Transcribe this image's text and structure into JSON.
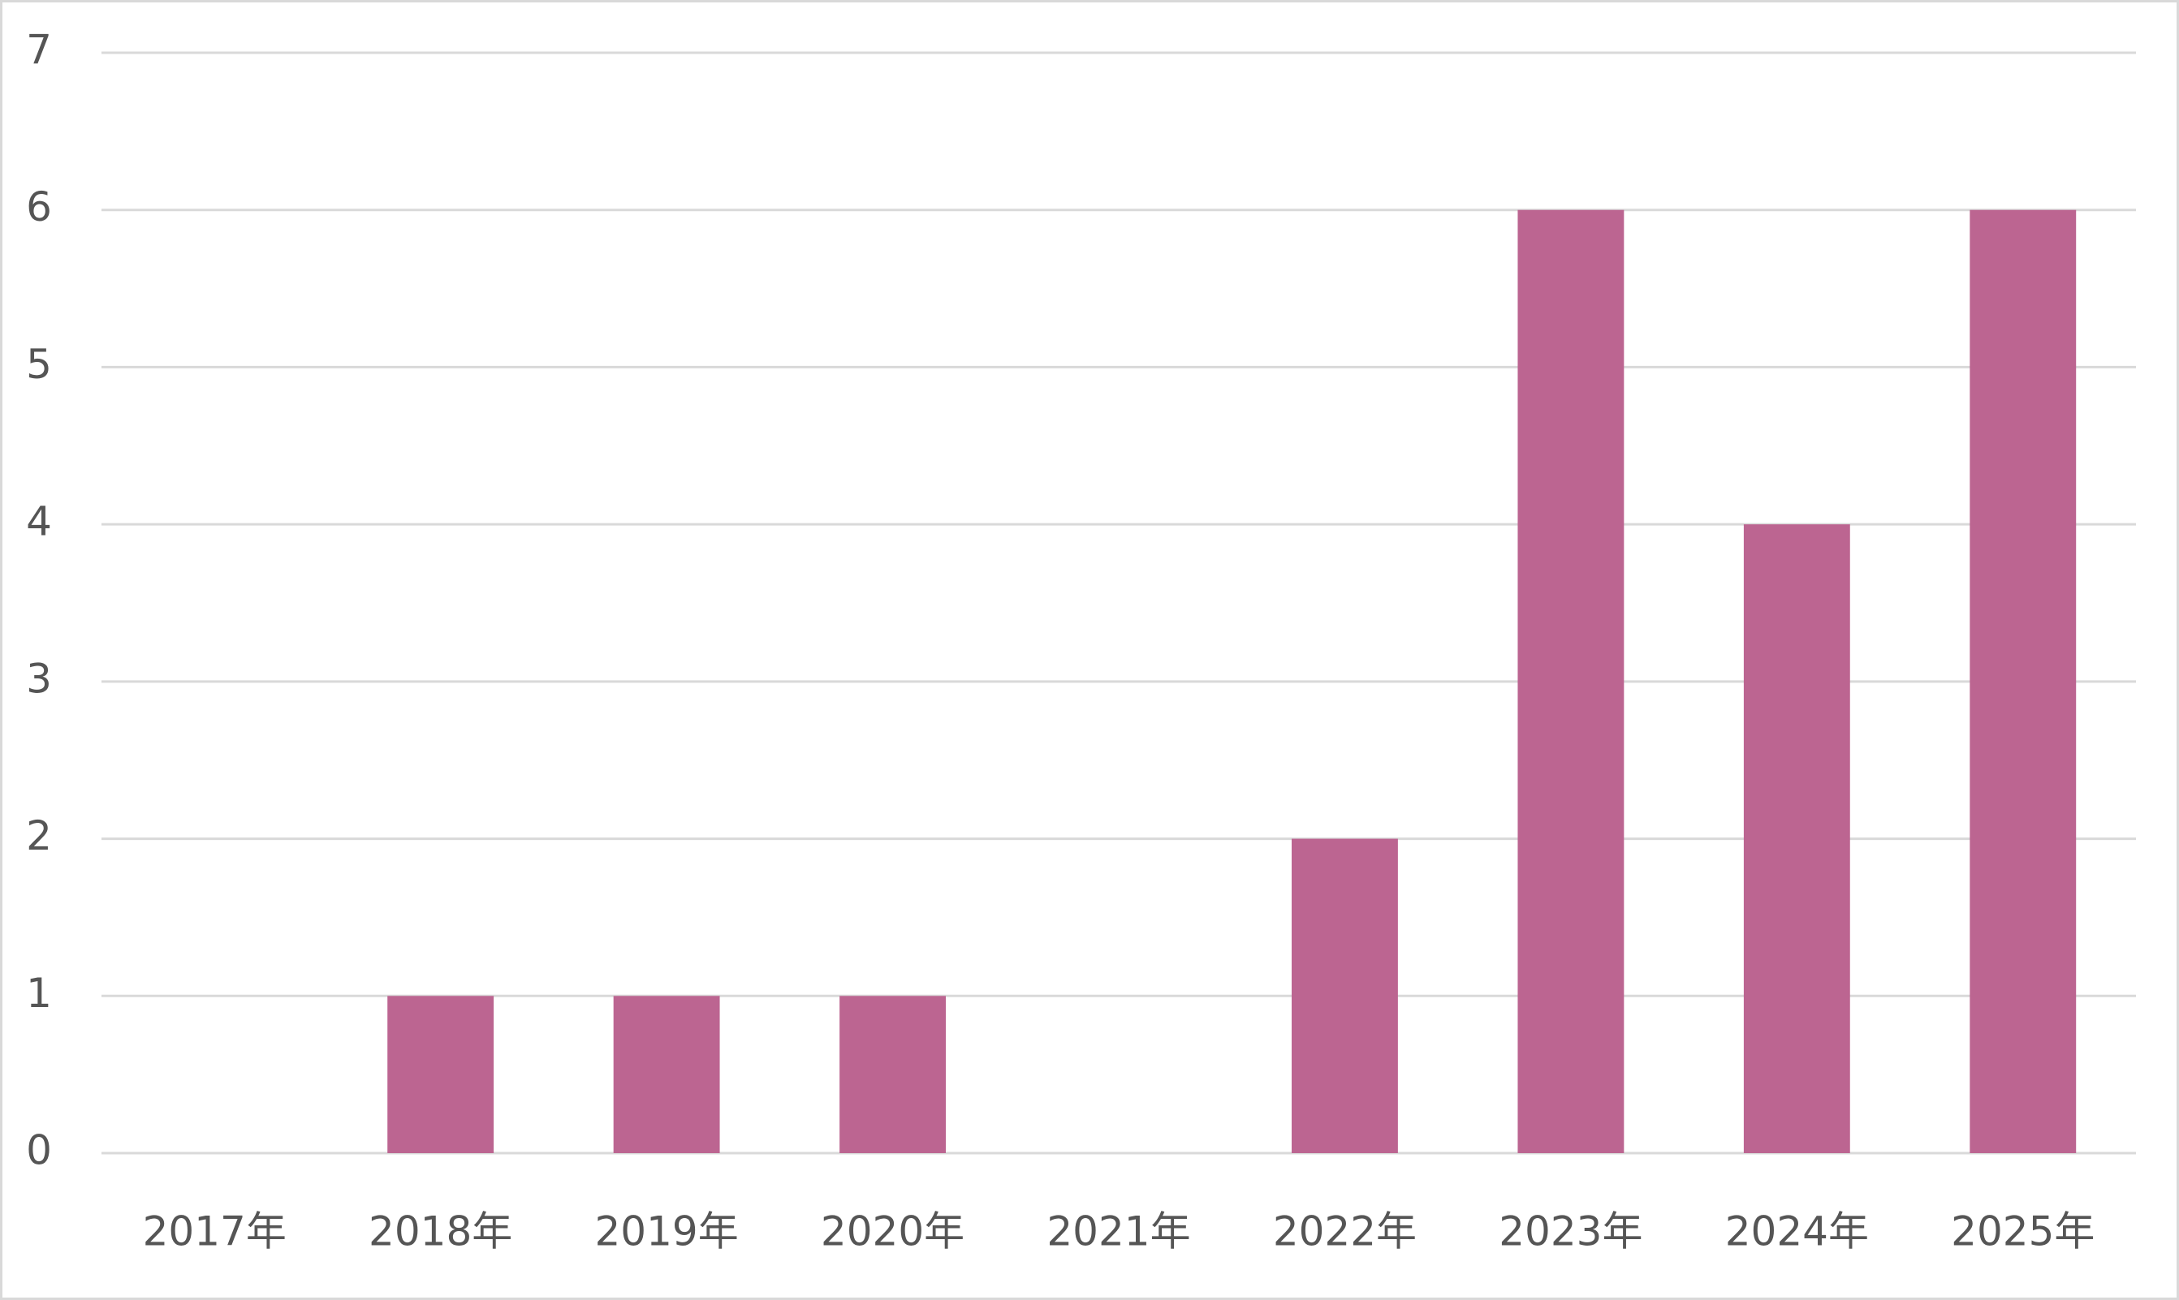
{
  "chart_data": {
    "type": "bar",
    "categories": [
      "2017年",
      "2018年",
      "2019年",
      "2020年",
      "2021年",
      "2022年",
      "2023年",
      "2024年",
      "2025年"
    ],
    "values": [
      0,
      1,
      1,
      1,
      0,
      2,
      6,
      4,
      6
    ],
    "color": "#bc6591",
    "ylim": [
      0,
      7
    ],
    "yticks": [
      0,
      1,
      2,
      3,
      4,
      5,
      6,
      7
    ],
    "grid": true
  }
}
